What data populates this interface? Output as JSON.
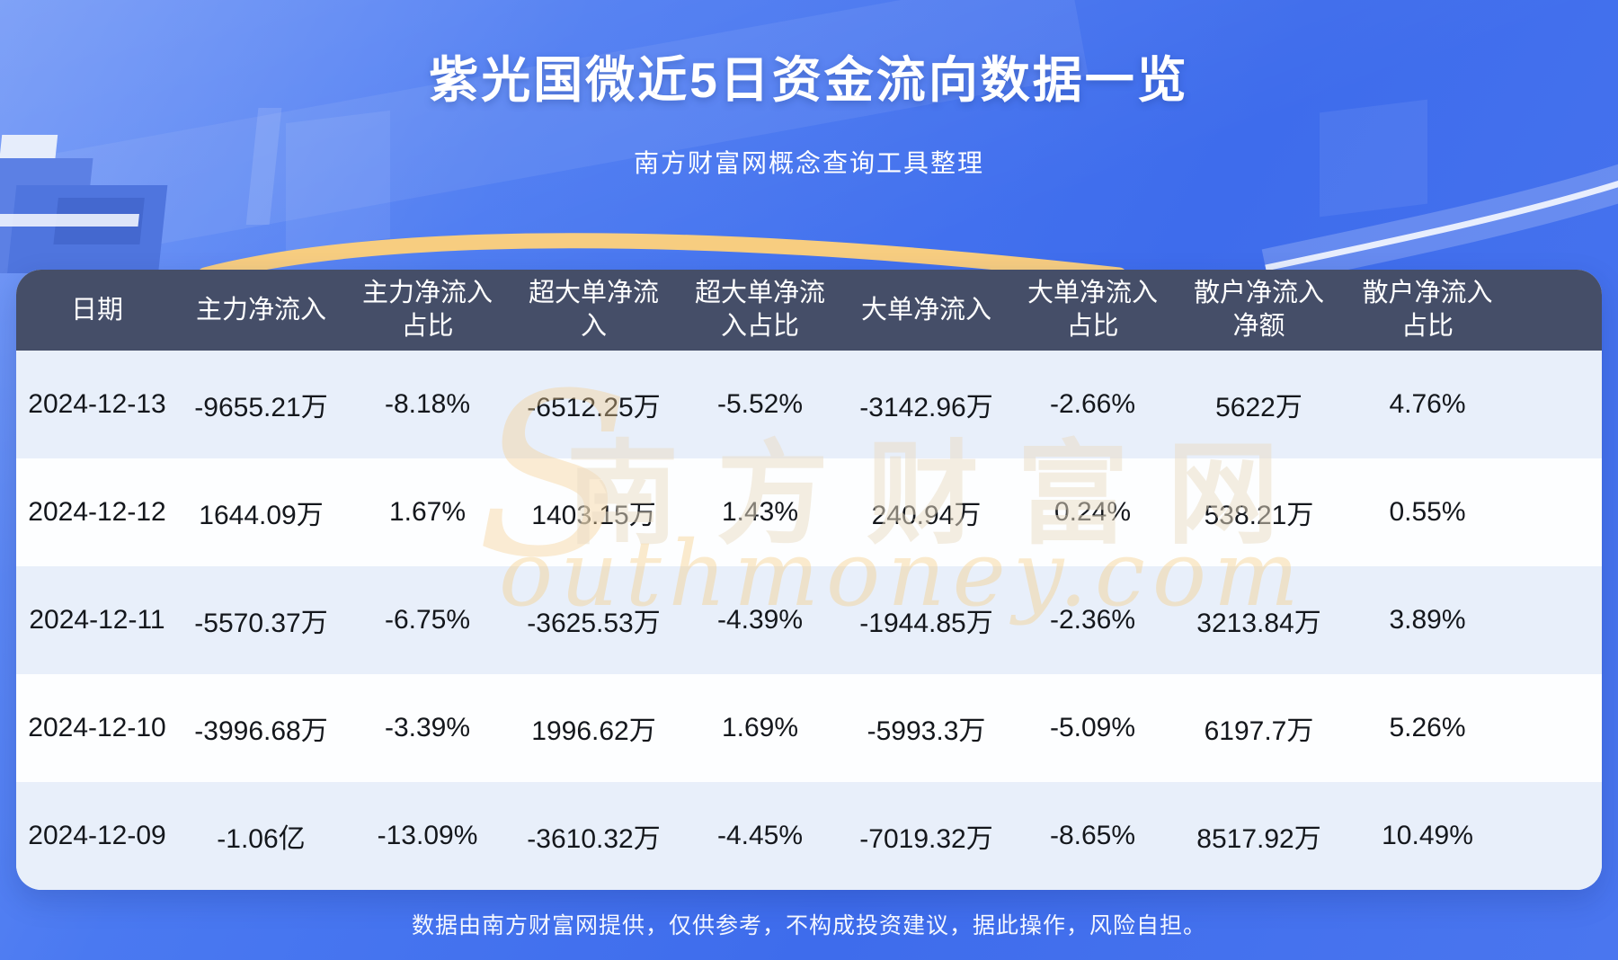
{
  "page": {
    "title": "紫光国微近5日资金流向数据一览",
    "subtitle": "南方财富网概念查询工具整理",
    "footer_note": "数据由南方财富网提供，仅供参考，不构成投资建议，据此操作，风险自担。",
    "watermark": {
      "s": "S",
      "cn": "南方财富网",
      "en": "outhmoney.com"
    }
  },
  "colors": {
    "background_blue": "#4a76ef",
    "header_bg": "#454e68",
    "stripe_row_bg": "#e8effa",
    "plain_row_bg": "#fdfeff",
    "gold_arc": "#f7cd80",
    "cell_text": "#14171c",
    "header_text": "#ffffff"
  },
  "table": {
    "header_labels": [
      "日期",
      "主力净流入",
      "主力净流入\n占比",
      "超大单净流\n入",
      "超大单净流\n入占比",
      "大单净流入",
      "大单净流入\n占比",
      "散户净流入\n净额",
      "散户净流入\n占比"
    ],
    "rows": [
      [
        "2024-12-13",
        "-9655.21万",
        "-8.18%",
        "-6512.25万",
        "-5.52%",
        "-3142.96万",
        "-2.66%",
        "5622万",
        "4.76%"
      ],
      [
        "2024-12-12",
        "1644.09万",
        "1.67%",
        "1403.15万",
        "1.43%",
        "240.94万",
        "0.24%",
        "538.21万",
        "0.55%"
      ],
      [
        "2024-12-11",
        "-5570.37万",
        "-6.75%",
        "-3625.53万",
        "-4.39%",
        "-1944.85万",
        "-2.36%",
        "3213.84万",
        "3.89%"
      ],
      [
        "2024-12-10",
        "-3996.68万",
        "-3.39%",
        "1996.62万",
        "1.69%",
        "-5993.3万",
        "-5.09%",
        "6197.7万",
        "5.26%"
      ],
      [
        "2024-12-09",
        "-1.06亿",
        "-13.09%",
        "-3610.32万",
        "-4.45%",
        "-7019.32万",
        "-8.65%",
        "8517.92万",
        "10.49%"
      ]
    ]
  },
  "chart_data": {
    "type": "table",
    "title": "紫光国微近5日资金流向数据一览",
    "subtitle": "南方财富网概念查询工具整理",
    "columns": [
      "日期",
      "主力净流入",
      "主力净流入占比",
      "超大单净流入",
      "超大单净流入占比",
      "大单净流入",
      "大单净流入占比",
      "散户净流入净额",
      "散户净流入占比"
    ],
    "rows": [
      [
        "2024-12-13",
        "-9655.21万",
        "-8.18%",
        "-6512.25万",
        "-5.52%",
        "-3142.96万",
        "-2.66%",
        "5622万",
        "4.76%"
      ],
      [
        "2024-12-12",
        "1644.09万",
        "1.67%",
        "1403.15万",
        "1.43%",
        "240.94万",
        "0.24%",
        "538.21万",
        "0.55%"
      ],
      [
        "2024-12-11",
        "-5570.37万",
        "-6.75%",
        "-3625.53万",
        "-4.39%",
        "-1944.85万",
        "-2.36%",
        "3213.84万",
        "3.89%"
      ],
      [
        "2024-12-10",
        "-3996.68万",
        "-3.39%",
        "1996.62万",
        "1.69%",
        "-5993.3万",
        "-5.09%",
        "6197.7万",
        "5.26%"
      ],
      [
        "2024-12-09",
        "-1.06亿",
        "-13.09%",
        "-3610.32万",
        "-4.45%",
        "-7019.32万",
        "-8.65%",
        "8517.92万",
        "10.49%"
      ]
    ],
    "footnote": "数据由南方财富网提供，仅供参考，不构成投资建议，据此操作，风险自担。"
  }
}
